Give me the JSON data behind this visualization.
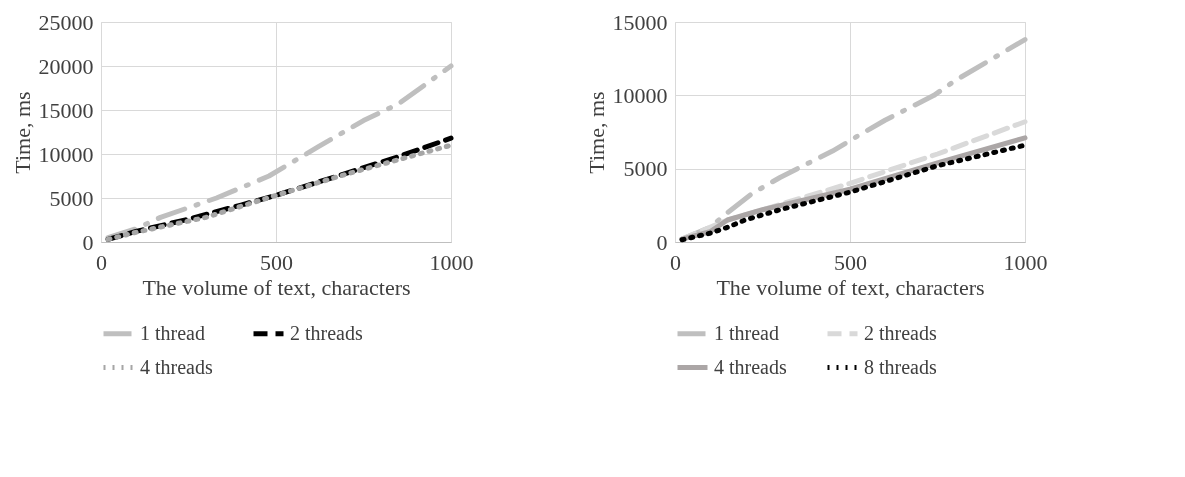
{
  "chart_data": [
    {
      "type": "line",
      "xlabel": "The volume of text, characters",
      "ylabel": "Time, ms",
      "xlim": [
        0,
        1000
      ],
      "xticks": [
        0,
        500,
        1000
      ],
      "ylim": [
        0,
        25000
      ],
      "yticks": [
        0,
        5000,
        10000,
        15000,
        20000,
        25000
      ],
      "grid": true,
      "legend": "bottom",
      "marker": "none",
      "series": [
        {
          "name": "1 thread",
          "color": "#bfbfbf",
          "line_style": "dashdot",
          "x": [
            20,
            100,
            170,
            330,
            480,
            620,
            750,
            850,
            1000
          ],
          "values": [
            500,
            1500,
            2800,
            5000,
            7500,
            10800,
            13800,
            15700,
            20000
          ]
        },
        {
          "name": "2 threads",
          "color": "#000000",
          "line_style": "dashed",
          "x": [
            20,
            100,
            250,
            400,
            500,
            700,
            850,
            1000
          ],
          "values": [
            300,
            1200,
            2600,
            4200,
            5300,
            7800,
            9700,
            11800
          ]
        },
        {
          "name": "4 threads",
          "color": "#a6a6a6",
          "line_style": "dotted",
          "x": [
            20,
            100,
            300,
            500,
            700,
            1000
          ],
          "values": [
            300,
            1100,
            2800,
            5300,
            7700,
            11000
          ]
        }
      ]
    },
    {
      "type": "line",
      "xlabel": "The volume of text, characters",
      "ylabel": "Time, ms",
      "xlim": [
        0,
        1000
      ],
      "xticks": [
        0,
        500,
        1000
      ],
      "ylim": [
        0,
        15000
      ],
      "yticks": [
        0,
        5000,
        10000,
        15000
      ],
      "grid": true,
      "legend": "bottom",
      "marker": "none",
      "series": [
        {
          "name": "1 thread",
          "color": "#bfbfbf",
          "line_style": "dashdot",
          "x": [
            20,
            100,
            150,
            220,
            300,
            450,
            520,
            600,
            740,
            800,
            1000
          ],
          "values": [
            200,
            1000,
            2000,
            3300,
            4400,
            6200,
            7200,
            8300,
            10000,
            11000,
            13800
          ]
        },
        {
          "name": "2 threads",
          "color": "#d9d9d9",
          "line_style": "dashed",
          "x": [
            20,
            150,
            250,
            500,
            750,
            1000
          ],
          "values": [
            200,
            1500,
            2200,
            4000,
            6000,
            8200
          ]
        },
        {
          "name": "4 threads",
          "color": "#aba6a6",
          "line_style": "solid",
          "x": [
            20,
            100,
            150,
            250,
            500,
            750,
            1000
          ],
          "values": [
            200,
            700,
            1500,
            2200,
            3600,
            5400,
            7100
          ]
        },
        {
          "name": "8 threads",
          "color": "#000000",
          "line_style": "dotted",
          "x": [
            20,
            100,
            150,
            200,
            300,
            500,
            750,
            1000
          ],
          "values": [
            150,
            600,
            1000,
            1500,
            2200,
            3400,
            5200,
            6600
          ]
        }
      ]
    }
  ]
}
